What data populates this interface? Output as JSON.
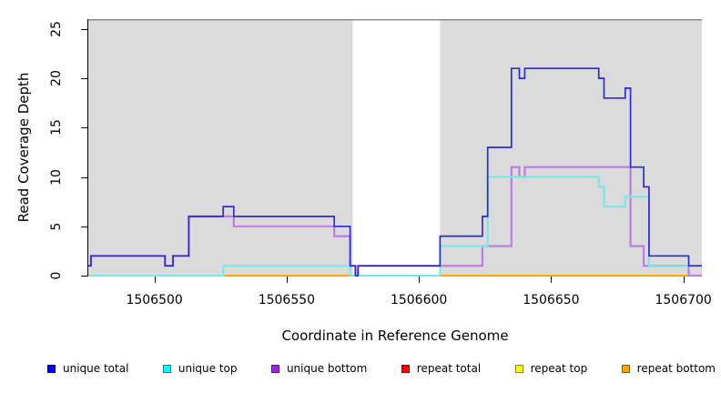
{
  "figure": {
    "x_axis_title": "Coordinate in Reference Genome",
    "y_axis_title": "Read Coverage Depth"
  },
  "chart_data": {
    "type": "line",
    "subtype": "step-coverage",
    "title": "",
    "xlabel": "Coordinate in Reference Genome",
    "ylabel": "Read Coverage Depth",
    "xlim": [
      1506475,
      1506707
    ],
    "ylim": [
      0,
      26
    ],
    "x_ticks": [
      1506500,
      1506550,
      1506600,
      1506650,
      1506700
    ],
    "x_tick_labels": [
      "1506500",
      "1506550",
      "1506600",
      "1506650",
      "1506700"
    ],
    "y_ticks": [
      0,
      5,
      10,
      15,
      20,
      25
    ],
    "y_tick_labels": [
      "0",
      "5",
      "10",
      "15",
      "20",
      "25"
    ],
    "grid": false,
    "plot_background": "#DBDBDB",
    "top_border_color": "#8C8C8C",
    "highlight_band": {
      "from": 1506575,
      "to": 1506608,
      "color": "#FFFFFF"
    },
    "zero_line_segments": [
      {
        "from": 1506475,
        "to": 1506527,
        "color": "#8FD98F"
      },
      {
        "from": 1506575,
        "to": 1506608,
        "color": "#8FD98F"
      }
    ],
    "series": [
      {
        "name": "repeat total",
        "color": "#E03030",
        "width": 1.2,
        "step_points": [
          [
            1506475,
            0
          ],
          [
            1506707,
            0
          ]
        ]
      },
      {
        "name": "repeat top",
        "color": "#F0F040",
        "width": 1.2,
        "step_points": [
          [
            1506475,
            0
          ],
          [
            1506707,
            0
          ]
        ]
      },
      {
        "name": "repeat bottom",
        "color": "#FFA500",
        "width": 2,
        "step_points": [
          [
            1506475,
            0
          ],
          [
            1506707,
            0
          ]
        ]
      },
      {
        "name": "unique bottom",
        "color": "#BD7DE5",
        "width": 2.2,
        "step_points": [
          [
            1506475,
            1
          ],
          [
            1506476,
            2
          ],
          [
            1506504,
            1
          ],
          [
            1506507,
            2
          ],
          [
            1506513,
            6
          ],
          [
            1506530,
            5
          ],
          [
            1506568,
            4
          ],
          [
            1506574,
            1
          ],
          [
            1506576,
            0
          ],
          [
            1506577,
            1
          ],
          [
            1506624,
            3
          ],
          [
            1506635,
            11
          ],
          [
            1506638,
            10
          ],
          [
            1506640,
            11
          ],
          [
            1506680,
            3
          ],
          [
            1506685,
            1
          ],
          [
            1506702,
            0
          ],
          [
            1506707,
            0
          ]
        ]
      },
      {
        "name": "unique top",
        "color": "#76E7E7",
        "width": 2,
        "step_points": [
          [
            1506475,
            0
          ],
          [
            1506526,
            1
          ],
          [
            1506574,
            0
          ],
          [
            1506608,
            3
          ],
          [
            1506626,
            10
          ],
          [
            1506668,
            9
          ],
          [
            1506670,
            7
          ],
          [
            1506678,
            8
          ],
          [
            1506687,
            1
          ],
          [
            1506707,
            1
          ]
        ]
      },
      {
        "name": "unique total",
        "color": "#2B2BD5",
        "width": 1.7,
        "step_points": [
          [
            1506475,
            1
          ],
          [
            1506476,
            2
          ],
          [
            1506504,
            1
          ],
          [
            1506507,
            2
          ],
          [
            1506513,
            6
          ],
          [
            1506526,
            7
          ],
          [
            1506530,
            6
          ],
          [
            1506568,
            5
          ],
          [
            1506574,
            1
          ],
          [
            1506576,
            0
          ],
          [
            1506577,
            1
          ],
          [
            1506608,
            4
          ],
          [
            1506624,
            6
          ],
          [
            1506626,
            13
          ],
          [
            1506635,
            21
          ],
          [
            1506638,
            20
          ],
          [
            1506640,
            21
          ],
          [
            1506668,
            20
          ],
          [
            1506670,
            18
          ],
          [
            1506678,
            19
          ],
          [
            1506680,
            11
          ],
          [
            1506685,
            9
          ],
          [
            1506687,
            2
          ],
          [
            1506702,
            1
          ],
          [
            1506707,
            1
          ]
        ]
      }
    ],
    "legend_position": "bottom",
    "legend": [
      {
        "label": "unique total",
        "fill": "#0000EE",
        "border": "#00008B"
      },
      {
        "label": "unique top",
        "fill": "#00FFFF",
        "border": "#008B8B"
      },
      {
        "label": "unique bottom",
        "fill": "#A020F0",
        "border": "#551A8B"
      },
      {
        "label": "repeat total",
        "fill": "#FF0000",
        "border": "#8B0000"
      },
      {
        "label": "repeat top",
        "fill": "#FFFF00",
        "border": "#8B8B00"
      },
      {
        "label": "repeat bottom",
        "fill": "#FFA500",
        "border": "#8B5A00"
      }
    ]
  }
}
